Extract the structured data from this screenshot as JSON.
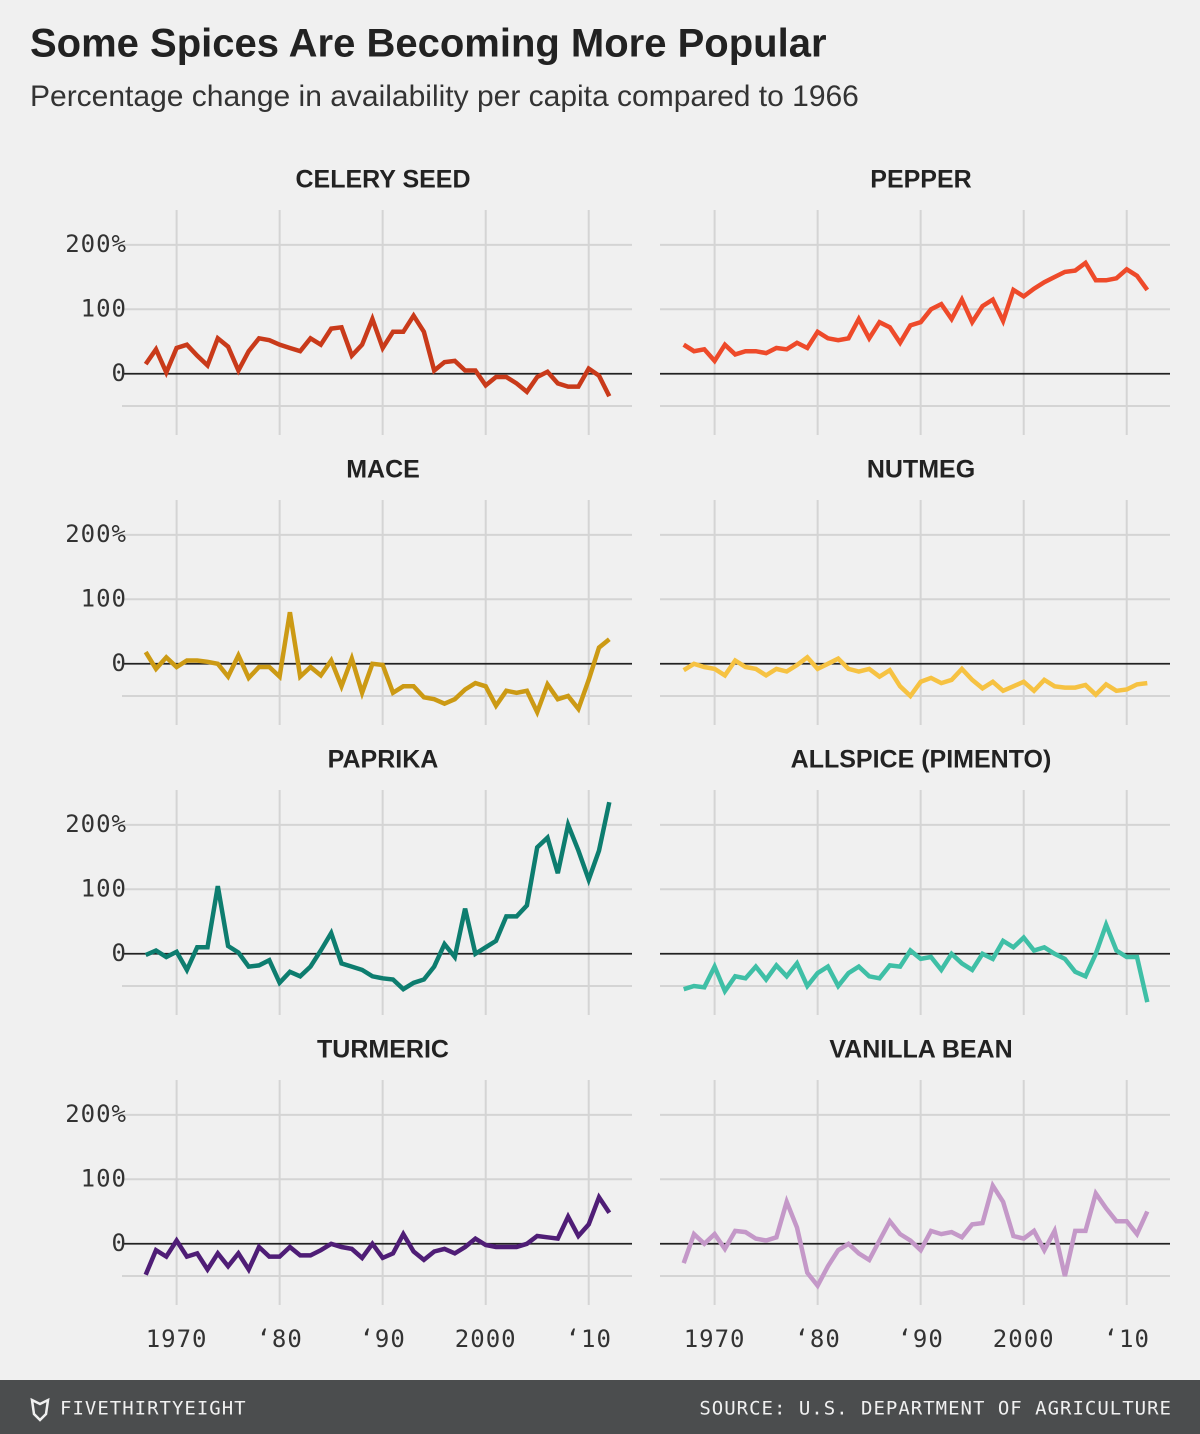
{
  "header": {
    "title": "Some Spices Are Becoming More Popular",
    "subtitle": "Percentage change in availability per capita compared to 1966"
  },
  "footer": {
    "brand": "FIVETHIRTYEIGHT",
    "source": "SOURCE: U.S. DEPARTMENT OF AGRICULTURE"
  },
  "chart_data": [
    {
      "type": "line",
      "title": "CELERY SEED",
      "color": "#c93a1a",
      "x": [
        1967,
        1968,
        1969,
        1970,
        1971,
        1972,
        1973,
        1974,
        1975,
        1976,
        1977,
        1978,
        1979,
        1980,
        1981,
        1982,
        1983,
        1984,
        1985,
        1986,
        1987,
        1988,
        1989,
        1990,
        1991,
        1992,
        1993,
        1994,
        1995,
        1996,
        1997,
        1998,
        1999,
        2000,
        2001,
        2002,
        2003,
        2004,
        2005,
        2006,
        2007,
        2008,
        2009,
        2010,
        2011,
        2012
      ],
      "values": [
        15,
        38,
        2,
        40,
        45,
        28,
        13,
        55,
        42,
        5,
        35,
        55,
        52,
        45,
        40,
        35,
        55,
        45,
        70,
        72,
        28,
        45,
        85,
        40,
        65,
        65,
        90,
        65,
        5,
        18,
        20,
        5,
        5,
        -18,
        -5,
        -5,
        -15,
        -28,
        -5,
        3,
        -15,
        -20,
        -20,
        8,
        -3,
        -35
      ],
      "xlim": [
        1964.7,
        2014.2
      ],
      "ylim": [
        -95,
        254
      ],
      "xgrid": [
        1970,
        1980,
        1990,
        2000,
        2010
      ],
      "ygrid": [
        -50,
        0,
        100,
        200
      ],
      "yticks": [
        {
          "value": 200,
          "label": "200%"
        },
        100,
        0
      ]
    },
    {
      "type": "line",
      "title": "PEPPER",
      "color": "#ee4a2a",
      "x": [
        1967,
        1968,
        1969,
        1970,
        1971,
        1972,
        1973,
        1974,
        1975,
        1976,
        1977,
        1978,
        1979,
        1980,
        1981,
        1982,
        1983,
        1984,
        1985,
        1986,
        1987,
        1988,
        1989,
        1990,
        1991,
        1992,
        1993,
        1994,
        1995,
        1996,
        1997,
        1998,
        1999,
        2000,
        2001,
        2002,
        2003,
        2004,
        2005,
        2006,
        2007,
        2008,
        2009,
        2010,
        2011,
        2012
      ],
      "values": [
        45,
        35,
        38,
        20,
        45,
        30,
        35,
        35,
        32,
        40,
        38,
        48,
        40,
        65,
        55,
        52,
        55,
        85,
        55,
        80,
        72,
        48,
        75,
        80,
        100,
        108,
        85,
        115,
        80,
        105,
        115,
        82,
        130,
        120,
        132,
        142,
        150,
        158,
        160,
        172,
        145,
        145,
        148,
        162,
        152,
        130
      ],
      "xlim": [
        1964.7,
        2014.2
      ],
      "ylim": [
        -95,
        254
      ],
      "xgrid": [
        1970,
        1980,
        1990,
        2000,
        2010
      ],
      "ygrid": [
        -50,
        0,
        100,
        200
      ]
    },
    {
      "type": "line",
      "title": "MACE",
      "color": "#cc9a14",
      "x": [
        1967,
        1968,
        1969,
        1970,
        1971,
        1972,
        1973,
        1974,
        1975,
        1976,
        1977,
        1978,
        1979,
        1980,
        1981,
        1982,
        1983,
        1984,
        1985,
        1986,
        1987,
        1988,
        1989,
        1990,
        1991,
        1992,
        1993,
        1994,
        1995,
        1996,
        1997,
        1998,
        1999,
        2000,
        2001,
        2002,
        2003,
        2004,
        2005,
        2006,
        2007,
        2008,
        2009,
        2010,
        2011,
        2012
      ],
      "values": [
        18,
        -8,
        10,
        -5,
        5,
        5,
        3,
        0,
        -20,
        13,
        -22,
        -5,
        -5,
        -20,
        80,
        -20,
        -5,
        -18,
        5,
        -35,
        8,
        -45,
        0,
        -2,
        -45,
        -35,
        -35,
        -52,
        -55,
        -62,
        -55,
        -40,
        -30,
        -35,
        -65,
        -42,
        -45,
        -42,
        -75,
        -32,
        -55,
        -50,
        -70,
        -25,
        25,
        38
      ],
      "xlim": [
        1964.7,
        2014.2
      ],
      "ylim": [
        -95,
        254
      ],
      "xgrid": [
        1970,
        1980,
        1990,
        2000,
        2010
      ],
      "ygrid": [
        -50,
        0,
        100,
        200
      ],
      "yticks": [
        {
          "value": 200,
          "label": "200%"
        },
        100,
        0
      ]
    },
    {
      "type": "line",
      "title": "NUTMEG",
      "color": "#f6c242",
      "x": [
        1967,
        1968,
        1969,
        1970,
        1971,
        1972,
        1973,
        1974,
        1975,
        1976,
        1977,
        1978,
        1979,
        1980,
        1981,
        1982,
        1983,
        1984,
        1985,
        1986,
        1987,
        1988,
        1989,
        1990,
        1991,
        1992,
        1993,
        1994,
        1995,
        1996,
        1997,
        1998,
        1999,
        2000,
        2001,
        2002,
        2003,
        2004,
        2005,
        2006,
        2007,
        2008,
        2009,
        2010,
        2011,
        2012
      ],
      "values": [
        -10,
        0,
        -5,
        -8,
        -18,
        5,
        -5,
        -8,
        -18,
        -8,
        -12,
        -2,
        10,
        -8,
        0,
        8,
        -8,
        -12,
        -8,
        -20,
        -10,
        -35,
        -50,
        -28,
        -22,
        -30,
        -25,
        -8,
        -25,
        -38,
        -28,
        -42,
        -35,
        -28,
        -42,
        -25,
        -35,
        -37,
        -37,
        -33,
        -48,
        -32,
        -42,
        -40,
        -32,
        -30
      ],
      "xlim": [
        1964.7,
        2014.2
      ],
      "ylim": [
        -95,
        254
      ],
      "xgrid": [
        1970,
        1980,
        1990,
        2000,
        2010
      ],
      "ygrid": [
        -50,
        0,
        100,
        200
      ]
    },
    {
      "type": "line",
      "title": "PAPRIKA",
      "color": "#0d7d6f",
      "x": [
        1967,
        1968,
        1969,
        1970,
        1971,
        1972,
        1973,
        1974,
        1975,
        1976,
        1977,
        1978,
        1979,
        1980,
        1981,
        1982,
        1983,
        1984,
        1985,
        1986,
        1987,
        1988,
        1989,
        1990,
        1991,
        1992,
        1993,
        1994,
        1995,
        1996,
        1997,
        1998,
        1999,
        2000,
        2001,
        2002,
        2003,
        2004,
        2005,
        2006,
        2007,
        2008,
        2009,
        2010,
        2011,
        2012
      ],
      "values": [
        -2,
        5,
        -5,
        3,
        -25,
        10,
        10,
        105,
        12,
        2,
        -20,
        -18,
        -10,
        -45,
        -28,
        -35,
        -20,
        5,
        32,
        -15,
        -20,
        -25,
        -35,
        -38,
        -40,
        -55,
        -45,
        -40,
        -20,
        15,
        -5,
        70,
        0,
        10,
        20,
        58,
        58,
        75,
        165,
        180,
        125,
        200,
        160,
        115,
        160,
        235
      ],
      "xlim": [
        1964.7,
        2014.2
      ],
      "ylim": [
        -95,
        254
      ],
      "xgrid": [
        1970,
        1980,
        1990,
        2000,
        2010
      ],
      "ygrid": [
        -50,
        0,
        100,
        200
      ],
      "yticks": [
        {
          "value": 200,
          "label": "200%"
        },
        100,
        0
      ]
    },
    {
      "type": "line",
      "title": "ALLSPICE (PIMENTO)",
      "color": "#3fbfa6",
      "x": [
        1967,
        1968,
        1969,
        1970,
        1971,
        1972,
        1973,
        1974,
        1975,
        1976,
        1977,
        1978,
        1979,
        1980,
        1981,
        1982,
        1983,
        1984,
        1985,
        1986,
        1987,
        1988,
        1989,
        1990,
        1991,
        1992,
        1993,
        1994,
        1995,
        1996,
        1997,
        1998,
        1999,
        2000,
        2001,
        2002,
        2003,
        2004,
        2005,
        2006,
        2007,
        2008,
        2009,
        2010,
        2011,
        2012
      ],
      "values": [
        -55,
        -50,
        -52,
        -20,
        -58,
        -35,
        -38,
        -20,
        -40,
        -18,
        -35,
        -15,
        -50,
        -30,
        -20,
        -50,
        -30,
        -20,
        -35,
        -38,
        -18,
        -20,
        5,
        -8,
        -5,
        -25,
        0,
        -15,
        -25,
        0,
        -8,
        20,
        10,
        25,
        5,
        10,
        0,
        -8,
        -28,
        -35,
        0,
        45,
        5,
        -5,
        -5,
        -75
      ],
      "xlim": [
        1964.7,
        2014.2
      ],
      "ylim": [
        -95,
        254
      ],
      "xgrid": [
        1970,
        1980,
        1990,
        2000,
        2010
      ],
      "ygrid": [
        -50,
        0,
        100,
        200
      ]
    },
    {
      "type": "line",
      "title": "TURMERIC",
      "color": "#4f1d76",
      "x": [
        1967,
        1968,
        1969,
        1970,
        1971,
        1972,
        1973,
        1974,
        1975,
        1976,
        1977,
        1978,
        1979,
        1980,
        1981,
        1982,
        1983,
        1984,
        1985,
        1986,
        1987,
        1988,
        1989,
        1990,
        1991,
        1992,
        1993,
        1994,
        1995,
        1996,
        1997,
        1998,
        1999,
        2000,
        2001,
        2002,
        2003,
        2004,
        2005,
        2006,
        2007,
        2008,
        2009,
        2010,
        2011,
        2012
      ],
      "values": [
        -48,
        -10,
        -20,
        5,
        -20,
        -15,
        -40,
        -15,
        -35,
        -15,
        -40,
        -5,
        -20,
        -20,
        -5,
        -18,
        -18,
        -10,
        0,
        -5,
        -8,
        -22,
        0,
        -22,
        -15,
        15,
        -12,
        -25,
        -12,
        -8,
        -15,
        -5,
        8,
        -2,
        -5,
        -5,
        -5,
        0,
        12,
        10,
        8,
        42,
        12,
        30,
        72,
        48
      ],
      "xlim": [
        1964.7,
        2014.2
      ],
      "ylim": [
        -95,
        254
      ],
      "xgrid": [
        1970,
        1980,
        1990,
        2000,
        2010
      ],
      "ygrid": [
        -50,
        0,
        100,
        200
      ],
      "yticks": [
        {
          "value": 200,
          "label": "200%"
        },
        100,
        0
      ],
      "xticks": [
        1970,
        {
          "value": 1980,
          "label": "‘80"
        },
        {
          "value": 1990,
          "label": "‘90"
        },
        2000,
        {
          "value": 2010,
          "label": "‘10"
        }
      ]
    },
    {
      "type": "line",
      "title": "VANILLA BEAN",
      "color": "#c498c8",
      "x": [
        1967,
        1968,
        1969,
        1970,
        1971,
        1972,
        1973,
        1974,
        1975,
        1976,
        1977,
        1978,
        1979,
        1980,
        1981,
        1982,
        1983,
        1984,
        1985,
        1986,
        1987,
        1988,
        1989,
        1990,
        1991,
        1992,
        1993,
        1994,
        1995,
        1996,
        1997,
        1998,
        1999,
        2000,
        2001,
        2002,
        2003,
        2004,
        2005,
        2006,
        2007,
        2008,
        2009,
        2010,
        2011,
        2012
      ],
      "values": [
        -30,
        15,
        0,
        15,
        -8,
        20,
        18,
        8,
        5,
        10,
        65,
        25,
        -45,
        -65,
        -35,
        -10,
        0,
        -15,
        -25,
        5,
        35,
        15,
        5,
        -10,
        20,
        15,
        18,
        10,
        30,
        32,
        90,
        65,
        12,
        8,
        20,
        -10,
        20,
        -50,
        20,
        20,
        78,
        55,
        35,
        35,
        15,
        50
      ],
      "xlim": [
        1964.7,
        2014.2
      ],
      "ylim": [
        -95,
        254
      ],
      "xgrid": [
        1970,
        1980,
        1990,
        2000,
        2010
      ],
      "ygrid": [
        -50,
        0,
        100,
        200
      ],
      "xticks": [
        1970,
        {
          "value": 1980,
          "label": "‘80"
        },
        {
          "value": 1990,
          "label": "‘90"
        },
        2000,
        {
          "value": 2010,
          "label": "‘10"
        }
      ]
    }
  ]
}
